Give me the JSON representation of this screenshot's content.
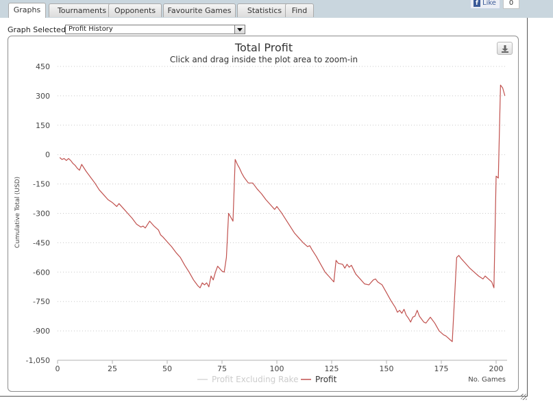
{
  "tabs": [
    {
      "label": "Graphs",
      "active": true
    },
    {
      "label": "Tournaments",
      "active": false
    },
    {
      "label": "Opponents",
      "active": false
    },
    {
      "label": "Favourite Games",
      "active": false
    },
    {
      "label": "Statistics",
      "active": false
    },
    {
      "label": "Find",
      "active": false
    }
  ],
  "facebook": {
    "like_label": "Like",
    "count": "0",
    "icon": "facebook-f-icon"
  },
  "graph_selector": {
    "label": "Graph Selected:",
    "value": "Profit History",
    "icon": "chevron-down-icon"
  },
  "export_icon": "download-icon",
  "colors": {
    "profit_line": "#c0504d",
    "rake_line": "#d9d9d9",
    "grid": "#c8c8c8"
  },
  "chart_data": {
    "type": "line",
    "title": "Total Profit",
    "subtitle": "Click and drag inside the plot area to zoom-in",
    "ylabel": "Cumulative Total (USD)",
    "xlabel": "No. Games",
    "xlim": [
      0,
      205
    ],
    "ylim": [
      -1050,
      450
    ],
    "x_ticks": [
      0,
      25,
      50,
      75,
      100,
      125,
      150,
      175,
      200
    ],
    "y_ticks": [
      450,
      300,
      150,
      0,
      -150,
      -300,
      -450,
      -600,
      -750,
      -900,
      -1050
    ],
    "y_tick_labels": [
      "450",
      "300",
      "150",
      "0",
      "-150",
      "-300",
      "-450",
      "-600",
      "-750",
      "-900",
      "-1,050"
    ],
    "grid": true,
    "legend_position": "bottom-center",
    "series": [
      {
        "name": "Profit Excluding Rake",
        "visible": false,
        "x": [],
        "y": []
      },
      {
        "name": "Profit",
        "visible": true,
        "x": [
          1,
          2,
          3,
          4,
          5,
          6,
          7,
          8,
          9,
          10,
          11,
          13,
          15,
          17,
          19,
          21,
          23,
          25,
          27,
          28,
          30,
          32,
          34,
          36,
          38,
          39,
          40,
          42,
          44,
          46,
          47,
          48,
          50,
          52,
          54,
          56,
          58,
          60,
          62,
          63,
          64,
          65,
          66,
          67,
          68,
          69,
          70,
          71,
          72,
          73,
          75,
          76,
          77,
          78,
          80,
          81,
          82,
          83,
          84,
          85,
          87,
          89,
          91,
          93,
          95,
          97,
          99,
          100,
          101,
          102,
          104,
          106,
          108,
          110,
          112,
          114,
          115,
          116,
          118,
          120,
          122,
          124,
          126,
          127,
          128,
          130,
          131,
          132,
          133,
          134,
          136,
          138,
          140,
          142,
          144,
          145,
          146,
          148,
          150,
          152,
          154,
          155,
          156,
          157,
          158,
          159,
          160,
          161,
          162,
          163,
          164,
          165,
          166,
          167,
          168,
          169,
          170,
          172,
          174,
          176,
          177,
          178,
          179,
          180,
          182,
          183,
          184,
          186,
          188,
          190,
          192,
          194,
          195,
          196,
          198,
          199,
          200,
          201,
          202,
          203,
          204
        ],
        "y": [
          -15,
          -25,
          -20,
          -30,
          -20,
          -30,
          -45,
          -55,
          -70,
          -80,
          -50,
          -85,
          -115,
          -145,
          -180,
          -205,
          -230,
          -245,
          -265,
          -250,
          -275,
          -300,
          -325,
          -355,
          -370,
          -365,
          -375,
          -340,
          -365,
          -385,
          -410,
          -420,
          -445,
          -470,
          -500,
          -525,
          -565,
          -600,
          -640,
          -655,
          -670,
          -680,
          -655,
          -665,
          -655,
          -675,
          -620,
          -640,
          -600,
          -570,
          -595,
          -600,
          -525,
          -300,
          -340,
          -25,
          -50,
          -70,
          -95,
          -115,
          -145,
          -145,
          -175,
          -200,
          -230,
          -255,
          -280,
          -265,
          -280,
          -295,
          -330,
          -365,
          -400,
          -425,
          -450,
          -470,
          -465,
          -485,
          -520,
          -560,
          -600,
          -625,
          -650,
          -540,
          -555,
          -560,
          -580,
          -560,
          -575,
          -565,
          -610,
          -635,
          -660,
          -665,
          -640,
          -635,
          -650,
          -665,
          -705,
          -745,
          -780,
          -805,
          -795,
          -810,
          -790,
          -820,
          -835,
          -855,
          -830,
          -825,
          -795,
          -825,
          -840,
          -855,
          -860,
          -845,
          -830,
          -860,
          -900,
          -920,
          -925,
          -935,
          -945,
          -955,
          -525,
          -515,
          -530,
          -555,
          -580,
          -600,
          -620,
          -635,
          -620,
          -630,
          -650,
          -680,
          -110,
          -120,
          355,
          340,
          300
        ]
      }
    ]
  }
}
